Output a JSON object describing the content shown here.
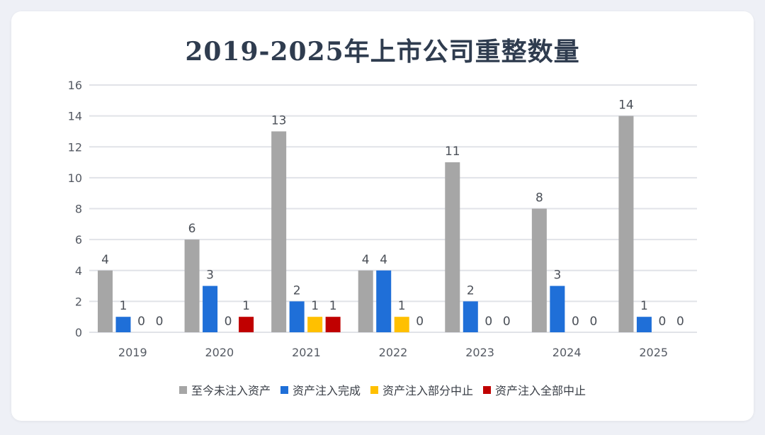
{
  "chart_data": {
    "type": "bar",
    "title": "2019-2025年上市公司重整数量",
    "categories": [
      "2019",
      "2020",
      "2021",
      "2022",
      "2023",
      "2024",
      "2025"
    ],
    "ylim": [
      0,
      16
    ],
    "yticks": [
      0,
      2,
      4,
      6,
      8,
      10,
      12,
      14,
      16
    ],
    "grid": true,
    "legend_position": "bottom",
    "series": [
      {
        "name": "至今未注入资产",
        "color": "#a6a6a6",
        "values": [
          4,
          6,
          13,
          4,
          11,
          8,
          14
        ]
      },
      {
        "name": "资产注入完成",
        "color": "#1f6fd8",
        "values": [
          1,
          3,
          2,
          4,
          2,
          3,
          1
        ]
      },
      {
        "name": "资产注入部分中止",
        "color": "#ffc000",
        "values": [
          0,
          0,
          1,
          1,
          0,
          0,
          0
        ]
      },
      {
        "name": "资产注入全部中止",
        "color": "#c00000",
        "values": [
          0,
          1,
          1,
          0,
          0,
          0,
          0
        ]
      }
    ]
  }
}
